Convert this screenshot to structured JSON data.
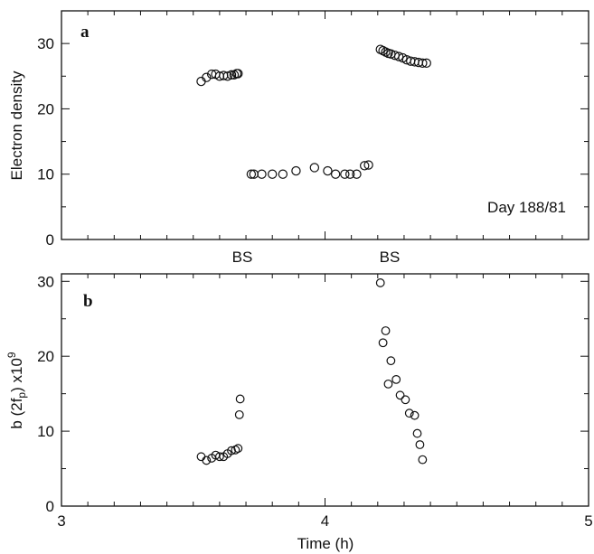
{
  "chart_data": [
    {
      "type": "scatter",
      "panel": "a",
      "ylabel": "Electron density",
      "xlim": [
        3,
        5
      ],
      "ylim": [
        0,
        35
      ],
      "yticks": [
        0,
        10,
        20,
        30
      ],
      "x_tick_labels_visible": false,
      "annotations": {
        "day": "Day 188/81",
        "bs1": "BS",
        "bs2": "BS"
      },
      "points": [
        {
          "x": 3.53,
          "y": 24.2
        },
        {
          "x": 3.55,
          "y": 24.8
        },
        {
          "x": 3.57,
          "y": 25.3
        },
        {
          "x": 3.585,
          "y": 25.3
        },
        {
          "x": 3.6,
          "y": 25.0
        },
        {
          "x": 3.615,
          "y": 25.1
        },
        {
          "x": 3.63,
          "y": 25.0
        },
        {
          "x": 3.645,
          "y": 25.2
        },
        {
          "x": 3.655,
          "y": 25.2
        },
        {
          "x": 3.665,
          "y": 25.4
        },
        {
          "x": 3.67,
          "y": 25.4
        },
        {
          "x": 3.72,
          "y": 10.0
        },
        {
          "x": 3.73,
          "y": 10.0
        },
        {
          "x": 3.76,
          "y": 10.0
        },
        {
          "x": 3.8,
          "y": 10.0
        },
        {
          "x": 3.84,
          "y": 10.0
        },
        {
          "x": 3.89,
          "y": 10.5
        },
        {
          "x": 3.96,
          "y": 11.0
        },
        {
          "x": 4.01,
          "y": 10.5
        },
        {
          "x": 4.04,
          "y": 10.0
        },
        {
          "x": 4.075,
          "y": 10.0
        },
        {
          "x": 4.095,
          "y": 10.0
        },
        {
          "x": 4.12,
          "y": 10.0
        },
        {
          "x": 4.15,
          "y": 11.3
        },
        {
          "x": 4.165,
          "y": 11.4
        },
        {
          "x": 4.21,
          "y": 29.1
        },
        {
          "x": 4.22,
          "y": 28.9
        },
        {
          "x": 4.23,
          "y": 28.7
        },
        {
          "x": 4.24,
          "y": 28.5
        },
        {
          "x": 4.25,
          "y": 28.4
        },
        {
          "x": 4.265,
          "y": 28.2
        },
        {
          "x": 4.28,
          "y": 28.0
        },
        {
          "x": 4.295,
          "y": 27.8
        },
        {
          "x": 4.31,
          "y": 27.5
        },
        {
          "x": 4.325,
          "y": 27.3
        },
        {
          "x": 4.34,
          "y": 27.2
        },
        {
          "x": 4.355,
          "y": 27.1
        },
        {
          "x": 4.37,
          "y": 27.0
        },
        {
          "x": 4.385,
          "y": 27.0
        }
      ]
    },
    {
      "type": "scatter",
      "panel": "b",
      "ylabel": "b (2f",
      "ylabel_sub": "p",
      "ylabel_tail": ") x10",
      "ylabel_sup": "9",
      "xlabel": "Time (h)",
      "xlim": [
        3,
        5
      ],
      "ylim": [
        0,
        31
      ],
      "xticks": [
        3,
        4,
        5
      ],
      "yticks": [
        0,
        10,
        20,
        30
      ],
      "points": [
        {
          "x": 3.53,
          "y": 6.6
        },
        {
          "x": 3.55,
          "y": 6.1
        },
        {
          "x": 3.57,
          "y": 6.4
        },
        {
          "x": 3.585,
          "y": 6.8
        },
        {
          "x": 3.6,
          "y": 6.6
        },
        {
          "x": 3.615,
          "y": 6.6
        },
        {
          "x": 3.63,
          "y": 7.0
        },
        {
          "x": 3.645,
          "y": 7.4
        },
        {
          "x": 3.66,
          "y": 7.5
        },
        {
          "x": 3.67,
          "y": 7.7
        },
        {
          "x": 3.675,
          "y": 12.2
        },
        {
          "x": 3.678,
          "y": 14.3
        },
        {
          "x": 4.21,
          "y": 29.8
        },
        {
          "x": 4.22,
          "y": 21.8
        },
        {
          "x": 4.23,
          "y": 23.4
        },
        {
          "x": 4.24,
          "y": 16.3
        },
        {
          "x": 4.25,
          "y": 19.4
        },
        {
          "x": 4.27,
          "y": 16.9
        },
        {
          "x": 4.285,
          "y": 14.8
        },
        {
          "x": 4.305,
          "y": 14.2
        },
        {
          "x": 4.32,
          "y": 12.4
        },
        {
          "x": 4.34,
          "y": 12.1
        },
        {
          "x": 4.35,
          "y": 9.7
        },
        {
          "x": 4.36,
          "y": 8.2
        },
        {
          "x": 4.37,
          "y": 6.2
        }
      ]
    }
  ]
}
